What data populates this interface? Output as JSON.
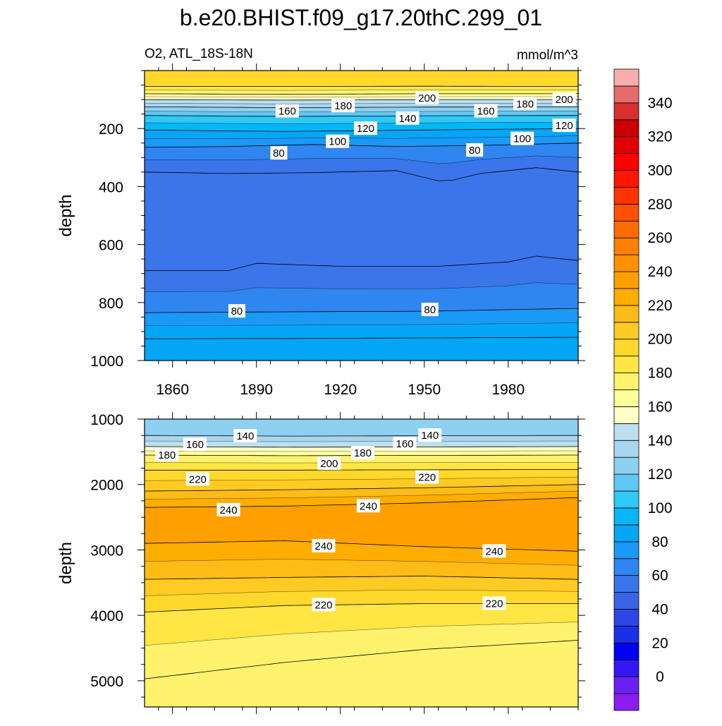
{
  "title": "b.e20.BHIST.f09_g17.20thC.299_01",
  "variable_label": "O2, ATL_18S-18N",
  "units_label": "mmol/m^3",
  "chart_data": [
    {
      "type": "heatmap",
      "panel": "upper",
      "ylabel": "depth",
      "xlim": [
        1850,
        2005
      ],
      "ylim": [
        1000,
        0
      ],
      "x_ticks": [
        1860,
        1890,
        1920,
        1950,
        1980
      ],
      "y_ticks": [
        200,
        400,
        600,
        800,
        1000
      ],
      "contours": [
        {
          "level": 200,
          "x": [
            1850,
            1900,
            1950,
            2005
          ],
          "y": [
            55,
            55,
            54,
            55
          ]
        },
        {
          "level": 180,
          "x": [
            1850,
            1900,
            1950,
            2005
          ],
          "y": [
            80,
            82,
            80,
            80
          ]
        },
        {
          "level": 160,
          "x": [
            1850,
            1900,
            1950,
            2005
          ],
          "y": [
            100,
            102,
            100,
            100
          ]
        },
        {
          "level": 140,
          "x": [
            1850,
            1900,
            1950,
            2005
          ],
          "y": [
            125,
            128,
            126,
            125
          ]
        },
        {
          "level": 120,
          "x": [
            1850,
            1900,
            1950,
            2005
          ],
          "y": [
            155,
            158,
            156,
            155
          ]
        },
        {
          "level": 100,
          "x": [
            1850,
            1900,
            1950,
            2005
          ],
          "y": [
            205,
            210,
            205,
            200
          ]
        },
        {
          "level": 80,
          "x": [
            1850,
            1880,
            1910,
            1940,
            1970,
            2005
          ],
          "y": [
            265,
            262,
            255,
            262,
            258,
            250
          ]
        },
        {
          "level": 60,
          "x": [
            1850,
            1880,
            1910,
            1940,
            1957,
            1970,
            1990,
            2005
          ],
          "y": [
            350,
            355,
            352,
            345,
            385,
            355,
            335,
            350
          ]
        },
        {
          "level": 60,
          "x": [
            1850,
            1880,
            1890,
            1920,
            1955,
            1980,
            1990,
            2005
          ],
          "y": [
            690,
            690,
            665,
            675,
            675,
            660,
            640,
            655
          ]
        },
        {
          "level": 80,
          "x": [
            1850,
            1900,
            1950,
            2005
          ],
          "y": [
            835,
            832,
            830,
            820
          ]
        },
        {
          "level": 100,
          "x": [
            1850,
            1900,
            1950,
            2005
          ],
          "y": [
            925,
            924,
            922,
            920
          ]
        }
      ],
      "contour_labels": [
        {
          "text": "160",
          "x": 1901,
          "y": 140
        },
        {
          "text": "180",
          "x": 1921,
          "y": 122
        },
        {
          "text": "200",
          "x": 1951,
          "y": 95
        },
        {
          "text": "160",
          "x": 1972,
          "y": 140
        },
        {
          "text": "180",
          "x": 1986,
          "y": 115
        },
        {
          "text": "200",
          "x": 2000,
          "y": 100
        },
        {
          "text": "140",
          "x": 1944,
          "y": 165
        },
        {
          "text": "120",
          "x": 1929,
          "y": 200
        },
        {
          "text": "120",
          "x": 2000,
          "y": 190
        },
        {
          "text": "100",
          "x": 1919,
          "y": 245
        },
        {
          "text": "100",
          "x": 1985,
          "y": 235
        },
        {
          "text": "80",
          "x": 1898,
          "y": 285
        },
        {
          "text": "80",
          "x": 1968,
          "y": 275
        },
        {
          "text": "80",
          "x": 1883,
          "y": 830
        },
        {
          "text": "80",
          "x": 1952,
          "y": 825
        }
      ]
    },
    {
      "type": "heatmap",
      "panel": "lower",
      "ylabel": "depth",
      "xlim": [
        1850,
        2005
      ],
      "ylim": [
        5400,
        1000
      ],
      "x_ticks": [
        1860,
        1890,
        1920,
        1950,
        1980
      ],
      "y_ticks": [
        1000,
        2000,
        3000,
        4000,
        5000
      ],
      "contours": [
        {
          "level": 140,
          "x": [
            1850,
            1900,
            1950,
            2005
          ],
          "y": [
            1250,
            1260,
            1255,
            1250
          ]
        },
        {
          "level": 160,
          "x": [
            1850,
            1900,
            1950,
            2005
          ],
          "y": [
            1420,
            1430,
            1425,
            1420
          ]
        },
        {
          "level": 180,
          "x": [
            1850,
            1900,
            1950,
            2005
          ],
          "y": [
            1550,
            1560,
            1555,
            1550
          ]
        },
        {
          "level": 200,
          "x": [
            1850,
            1900,
            1950,
            2005
          ],
          "y": [
            1780,
            1780,
            1775,
            1770
          ]
        },
        {
          "level": 220,
          "x": [
            1850,
            1900,
            1950,
            2005
          ],
          "y": [
            2100,
            2080,
            2050,
            2000
          ]
        },
        {
          "level": 240,
          "x": [
            1850,
            1900,
            1950,
            2005
          ],
          "y": [
            2350,
            2330,
            2280,
            2200
          ]
        },
        {
          "level": 240,
          "x": [
            1850,
            1900,
            1950,
            2005
          ],
          "y": [
            2900,
            2860,
            2950,
            3020
          ]
        },
        {
          "level": 220,
          "x": [
            1850,
            1900,
            1950,
            2005
          ],
          "y": [
            3450,
            3420,
            3400,
            3450
          ]
        },
        {
          "level": 200,
          "x": [
            1850,
            1900,
            1950,
            2005
          ],
          "y": [
            3950,
            3850,
            3820,
            3820
          ]
        },
        {
          "level": 180,
          "x": [
            1850,
            1900,
            1950,
            1990,
            2005
          ],
          "y": [
            4970,
            4720,
            4520,
            4420,
            4380
          ]
        }
      ],
      "contour_labels": [
        {
          "text": "140",
          "x": 1886,
          "y": 1260
        },
        {
          "text": "160",
          "x": 1868,
          "y": 1390
        },
        {
          "text": "180",
          "x": 1858,
          "y": 1550
        },
        {
          "text": "140",
          "x": 1952,
          "y": 1250
        },
        {
          "text": "160",
          "x": 1943,
          "y": 1380
        },
        {
          "text": "180",
          "x": 1928,
          "y": 1520
        },
        {
          "text": "200",
          "x": 1916,
          "y": 1680
        },
        {
          "text": "220",
          "x": 1869,
          "y": 1920
        },
        {
          "text": "220",
          "x": 1951,
          "y": 1890
        },
        {
          "text": "240",
          "x": 1880,
          "y": 2390
        },
        {
          "text": "240",
          "x": 1930,
          "y": 2330
        },
        {
          "text": "240",
          "x": 1914,
          "y": 2940
        },
        {
          "text": "240",
          "x": 1975,
          "y": 3020
        },
        {
          "text": "220",
          "x": 1914,
          "y": 3840
        },
        {
          "text": "220",
          "x": 1975,
          "y": 3820
        }
      ]
    }
  ],
  "colorbar": {
    "labels": [
      "0",
      "20",
      "40",
      "60",
      "80",
      "100",
      "120",
      "140",
      "160",
      "180",
      "200",
      "220",
      "240",
      "260",
      "280",
      "300",
      "320",
      "340"
    ],
    "colors": [
      "#8c1cf0",
      "#6a1ff5",
      "#3317f2",
      "#0000f5",
      "#1a30e6",
      "#2c47e3",
      "#3b63e3",
      "#3a75ea",
      "#2f86f0",
      "#1b99f7",
      "#05a6f5",
      "#05b7f7",
      "#30c8f5",
      "#61c7f2",
      "#8dd0f0",
      "#a8d6ee",
      "#bcdff0",
      "#ffffc6",
      "#ffff9c",
      "#fff36e",
      "#ffe645",
      "#ffd82c",
      "#ffcb22",
      "#ffbc16",
      "#ffae00",
      "#ffa000",
      "#ff9100",
      "#ff7f00",
      "#ff6c00",
      "#ff5000",
      "#ff3300",
      "#ff1600",
      "#ff0000",
      "#e50000",
      "#cc0000",
      "#d83030",
      "#e86b6b",
      "#f9aeae"
    ]
  }
}
